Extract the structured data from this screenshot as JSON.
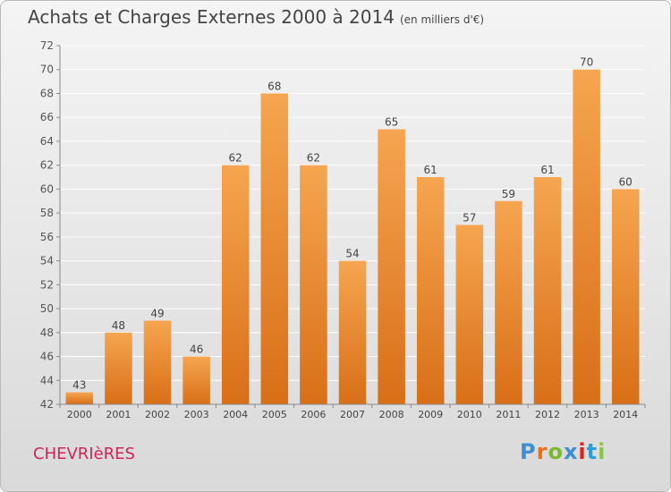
{
  "title": "Achats et Charges Externes 2000 à 2014",
  "subtitle": "(en milliers d'€)",
  "commune": "CHEVRIèRES",
  "logo": {
    "letters": [
      "P",
      "r",
      "o",
      "x",
      "i",
      "t",
      "i"
    ],
    "colors": [
      "#3a8fd6",
      "#e8701a",
      "#7ab82e",
      "#3a8fd6",
      "#d9251c",
      "#2b9fd9",
      "#8cc63f"
    ]
  },
  "colors": {
    "bar_light": "#f6a550",
    "bar_dark": "#d86f17",
    "grid": "#ffffff",
    "axis": "#888888"
  },
  "chart_data": {
    "type": "bar",
    "title": "Achats et Charges Externes 2000 à 2014",
    "subtitle": "(en milliers d'€)",
    "xlabel": "",
    "ylabel": "",
    "categories": [
      "2000",
      "2001",
      "2002",
      "2003",
      "2004",
      "2005",
      "2006",
      "2007",
      "2008",
      "2009",
      "2010",
      "2011",
      "2012",
      "2013",
      "2014"
    ],
    "values": [
      43,
      48,
      49,
      46,
      62,
      68,
      62,
      54,
      65,
      61,
      57,
      59,
      61,
      70,
      60
    ],
    "ylim": [
      42,
      72
    ],
    "yticks": [
      42,
      44,
      46,
      48,
      50,
      52,
      54,
      56,
      58,
      60,
      62,
      64,
      66,
      68,
      70,
      72
    ],
    "grid": true
  }
}
